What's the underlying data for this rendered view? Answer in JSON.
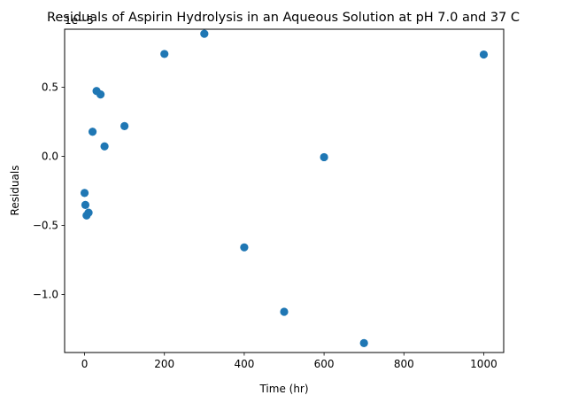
{
  "chart_data": {
    "type": "scatter",
    "title": "Residuals of Aspirin Hydrolysis in an Aqueous Solution at pH 7.0 and 37 C",
    "xlabel": "Time (hr)",
    "ylabel": "Residuals",
    "offset_text": "1e−5",
    "xlim": [
      -50,
      1050
    ],
    "ylim": [
      -1.42,
      0.92
    ],
    "y_scale_multiplier": "1e-5",
    "xticks": [
      0,
      200,
      400,
      600,
      800,
      1000
    ],
    "xtick_labels": [
      "0",
      "200",
      "400",
      "600",
      "800",
      "1000"
    ],
    "yticks": [
      -1.0,
      -0.5,
      0.0,
      0.5
    ],
    "ytick_labels": [
      "−1.0",
      "−0.5",
      "0.0",
      "0.5"
    ],
    "grid": false,
    "marker_color": "#1f77b4",
    "series": [
      {
        "x": [
          0,
          2,
          5,
          10,
          20,
          30,
          40,
          50,
          100,
          200,
          300,
          400,
          500,
          600,
          700,
          1000
        ],
        "y": [
          -0.265,
          -0.352,
          -0.428,
          -0.408,
          0.178,
          0.473,
          0.448,
          0.072,
          0.219,
          0.741,
          0.887,
          -0.659,
          -1.125,
          -0.006,
          -1.352,
          0.737
        ]
      }
    ]
  }
}
